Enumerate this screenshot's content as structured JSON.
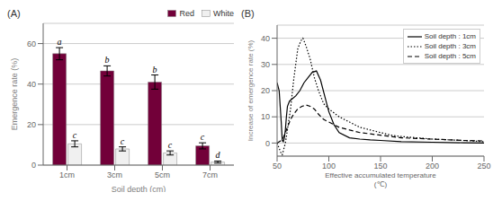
{
  "chart_data": [
    {
      "type": "bar",
      "title": "(A)",
      "categories": [
        "1cm",
        "3cm",
        "5cm",
        "7cm"
      ],
      "series": [
        {
          "name": "Red",
          "color": "#720039",
          "values": [
            55.0,
            46.5,
            41.0,
            9.5
          ],
          "errors": [
            3.0,
            2.5,
            3.5,
            1.5
          ],
          "letters": [
            "a",
            "b",
            "b",
            "c"
          ]
        },
        {
          "name": "White",
          "color": "#f0f0f0",
          "values": [
            10.5,
            8.0,
            6.0,
            1.5
          ],
          "errors": [
            1.5,
            1.0,
            1.0,
            0.5
          ],
          "letters": [
            "c",
            "c",
            "c",
            "d"
          ]
        }
      ],
      "x_label": "Soil depth (cm)",
      "y_label": "Emergence rate (%)",
      "ylim": [
        0,
        70
      ],
      "yticks": [
        0,
        20,
        40,
        60
      ],
      "grid": true,
      "legend": "upper right"
    },
    {
      "type": "line",
      "title": "(B)",
      "series": [
        {
          "name": "Soil depth : 1cm",
          "color": "#000000",
          "line_style": "solid",
          "x": [
            50,
            52,
            54,
            55,
            56,
            57,
            58,
            59,
            60,
            62,
            65,
            68,
            72,
            76,
            80,
            84,
            88,
            92,
            96,
            100,
            105,
            110,
            120,
            130,
            140,
            150,
            170,
            200,
            230,
            250
          ],
          "values": [
            23,
            20,
            8,
            1,
            0.5,
            2,
            5,
            10,
            14,
            16,
            17,
            18,
            20,
            23,
            25,
            27,
            27.5,
            24,
            18,
            12,
            7,
            4,
            2,
            1.5,
            1.2,
            1.0,
            0.5,
            0.3,
            0.1,
            0
          ]
        },
        {
          "name": "Soil depth : 3cm",
          "color": "#000000",
          "line_style": "dotted",
          "x": [
            50,
            52,
            54,
            55,
            56,
            58,
            60,
            63,
            66,
            70,
            73,
            75,
            78,
            82,
            86,
            90,
            95,
            100,
            110,
            120,
            130,
            140,
            150,
            160,
            170,
            200,
            230,
            250
          ],
          "values": [
            0,
            -2,
            -4,
            -4.5,
            -3,
            0,
            5,
            13,
            24,
            36,
            39,
            40,
            37,
            32,
            25,
            20,
            15,
            13,
            10,
            8,
            6,
            5,
            4,
            3,
            2.5,
            1.5,
            1,
            0.5
          ]
        },
        {
          "name": "Soil depth : 5cm",
          "color": "#000000",
          "line_style": "dashed",
          "x": [
            50,
            52,
            54,
            56,
            58,
            60,
            63,
            66,
            70,
            74,
            78,
            82,
            86,
            90,
            95,
            100,
            110,
            120,
            130,
            140,
            150,
            160,
            170,
            200,
            230,
            250
          ],
          "values": [
            0,
            0.5,
            1,
            2,
            4,
            6,
            9,
            11,
            13,
            14,
            14.5,
            14,
            13,
            11,
            9,
            8,
            6,
            5,
            4,
            3.5,
            3,
            2.5,
            2,
            1.5,
            1,
            0.8
          ]
        }
      ],
      "x_label": "Effective accumulated temperature\n(℃)",
      "y_label": "Increase of emergence rate (%)",
      "xlim": [
        50,
        250
      ],
      "ylim": [
        -5,
        45
      ],
      "xticks": [
        50,
        100,
        150,
        200,
        250
      ],
      "yticks": [
        0,
        10,
        20,
        30,
        40
      ],
      "grid": true,
      "legend": "upper right"
    }
  ]
}
